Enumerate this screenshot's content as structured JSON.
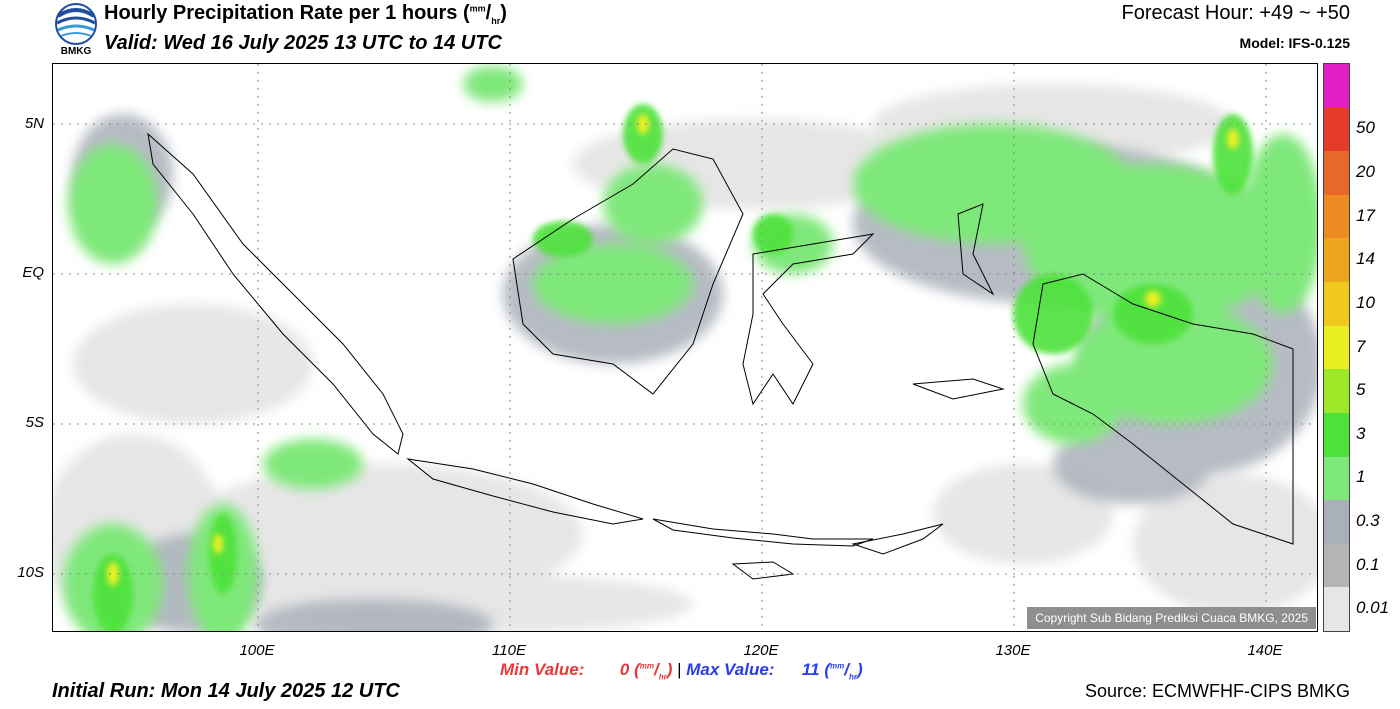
{
  "header": {
    "logo_text": "BMKG",
    "title_main": "Hourly Precipitation Rate per 1 hours (",
    "title_unit_num": "mm",
    "title_unit_den": "hr",
    "title_close": ")",
    "valid": "Valid: Wed 16 July 2025 13 UTC to 14 UTC",
    "forecast_hour": "Forecast Hour: +49 ~ +50",
    "model": "Model: IFS-0.125"
  },
  "axes": {
    "latitude_labels": [
      "5N",
      "EQ",
      "5S",
      "10S"
    ],
    "longitude_labels": [
      "100E",
      "110E",
      "120E",
      "130E",
      "140E"
    ]
  },
  "colorbar": {
    "labels": [
      "0.01",
      "0.1",
      "0.3",
      "1",
      "3",
      "5",
      "7",
      "10",
      "14",
      "17",
      "20",
      "50"
    ],
    "colors": [
      "#e6e6e6",
      "#b4b4b4",
      "#aab0ba",
      "#7fe87a",
      "#4ee23a",
      "#9ee82a",
      "#eaf020",
      "#f0c81e",
      "#eea51e",
      "#ed8a22",
      "#e8682a",
      "#e63a2c",
      "#e21ec4"
    ]
  },
  "stats": {
    "min_label": "Min Value:",
    "min_value": "0",
    "max_label": "Max Value:",
    "max_value": "11",
    "unit_num": "mm",
    "unit_den": "hr",
    "separator": "|",
    "min_color": "#e8383a",
    "max_color": "#2a3cf0"
  },
  "footer": {
    "initial_run": "Initial Run: Mon 14 July 2025 12 UTC",
    "source": "Source: ECMWFHF-CIPS BMKG",
    "copyright": "Copyright Sub Bidang Prediksi Cuaca BMKG, 2025"
  }
}
